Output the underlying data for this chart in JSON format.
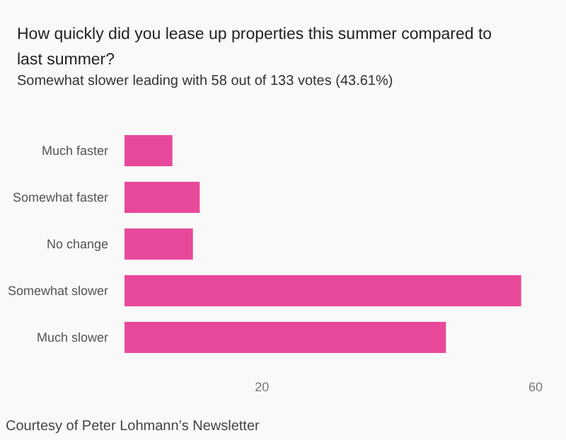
{
  "chart_data": {
    "type": "bar",
    "orientation": "horizontal",
    "title": "How quickly did you lease up properties this summer compared to last summer?",
    "subtitle": "Somewhat slower leading with 58 out of 133 votes (43.61%)",
    "categories": [
      "Much faster",
      "Somewhat faster",
      "No change",
      "Somewhat slower",
      "Much slower"
    ],
    "values": [
      7,
      11,
      10,
      58,
      47
    ],
    "color": "#e8489a",
    "xlim": [
      0,
      60
    ],
    "xticks": [
      20,
      60
    ],
    "grid": false,
    "annotations": [
      "Courtesy of Peter Lohmann’s Newsletter"
    ]
  }
}
